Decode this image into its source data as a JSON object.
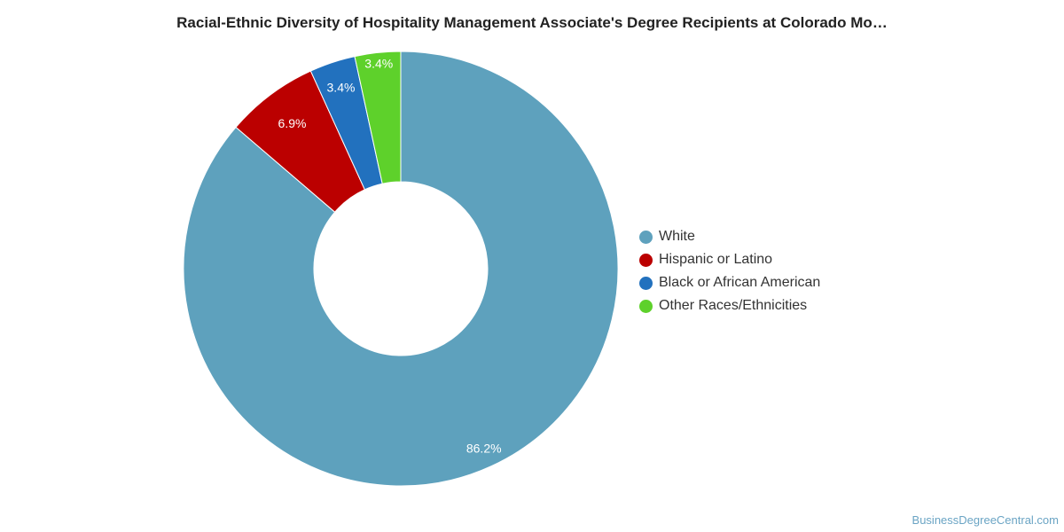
{
  "chart_data": {
    "type": "pie",
    "title": "Racial-Ethnic Diversity of Hospitality Management Associate's Degree Recipients at Colorado Mo…",
    "slices": [
      {
        "name": "White",
        "value": 86.2,
        "label": "86.2%",
        "color": "#5ea1bd"
      },
      {
        "name": "Hispanic or Latino",
        "value": 6.9,
        "label": "6.9%",
        "color": "#bb0000"
      },
      {
        "name": "Black or African American",
        "value": 3.4,
        "label": "3.4%",
        "color": "#2271be"
      },
      {
        "name": "Other Races/Ethnicities",
        "value": 3.4,
        "label": "3.4%",
        "color": "#5ed12b"
      }
    ],
    "legend_position": "right"
  },
  "watermark": "BusinessDegreeCentral.com"
}
